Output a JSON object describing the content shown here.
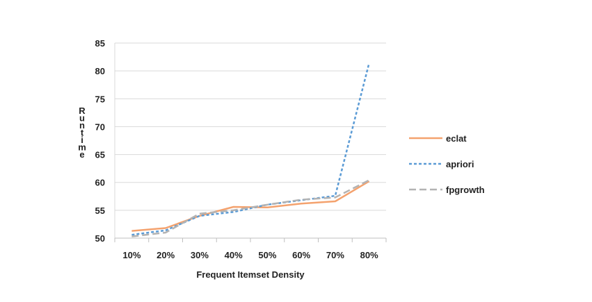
{
  "chart_data": {
    "type": "line",
    "xlabel": "Frequent Itemset Density",
    "ylabel": "Runtime",
    "categories": [
      "10%",
      "20%",
      "30%",
      "40%",
      "50%",
      "60%",
      "70%",
      "80%"
    ],
    "ylim": [
      50,
      85
    ],
    "yticks": [
      50,
      55,
      60,
      65,
      70,
      75,
      80,
      85
    ],
    "grid": true,
    "legend_position": "right",
    "series": [
      {
        "name": "eclat",
        "color": "#f4a26e",
        "dash": "solid",
        "values": [
          51.3,
          51.8,
          54.0,
          55.6,
          55.5,
          56.2,
          56.6,
          60.2
        ]
      },
      {
        "name": "apriori",
        "color": "#5b9bd5",
        "dash": "short-dash",
        "values": [
          50.6,
          51.4,
          54.0,
          54.7,
          56.0,
          56.8,
          57.6,
          81.4
        ]
      },
      {
        "name": "fpgrowth",
        "color": "#b3b3b3",
        "dash": "long-dash",
        "values": [
          50.3,
          51.0,
          54.4,
          55.0,
          56.0,
          56.9,
          57.3,
          60.4
        ]
      }
    ]
  }
}
